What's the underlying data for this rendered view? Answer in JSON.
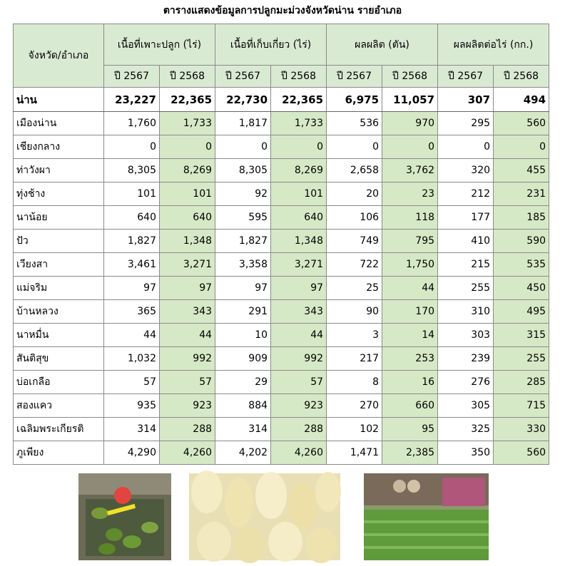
{
  "title": "ตารางแสดงข้อมูลการปลูกมะม่วงจังหวัดน่าน รายอำเภอ",
  "table": {
    "header": {
      "row_label": "จังหวัด/อำเภอ",
      "groups": [
        "เนื้อที่เพาะปลูก (ไร่)",
        "เนื้อที่เก็บเกี่ยว (ไร่)",
        "ผลผลิต (ตัน)",
        "ผลผลิตต่อไร่ (กก.)"
      ],
      "years": [
        "ปี 2567",
        "ปี 2568",
        "ปี 2567",
        "ปี 2568",
        "ปี 2567",
        "ปี 2568",
        "ปี 2567",
        "ปี 2568"
      ]
    },
    "rows": [
      [
        "น่าน",
        "23,227",
        "22,365",
        "22,730",
        "22,365",
        "6,975",
        "11,057",
        "307",
        "494"
      ],
      [
        "เมืองน่าน",
        "1,760",
        "1,733",
        "1,817",
        "1,733",
        "536",
        "970",
        "295",
        "560"
      ],
      [
        "เชียงกลาง",
        "0",
        "0",
        "0",
        "0",
        "0",
        "0",
        "0",
        "0"
      ],
      [
        "ท่าวังผา",
        "8,305",
        "8,269",
        "8,305",
        "8,269",
        "2,658",
        "3,762",
        "320",
        "455"
      ],
      [
        "ทุ่งช้าง",
        "101",
        "101",
        "92",
        "101",
        "20",
        "23",
        "212",
        "231"
      ],
      [
        "นาน้อย",
        "640",
        "640",
        "595",
        "640",
        "106",
        "118",
        "177",
        "185"
      ],
      [
        "ปัว",
        "1,827",
        "1,348",
        "1,827",
        "1,348",
        "749",
        "795",
        "410",
        "590"
      ],
      [
        "เวียงสา",
        "3,461",
        "3,271",
        "3,358",
        "3,271",
        "722",
        "1,750",
        "215",
        "535"
      ],
      [
        "แม่จริม",
        "97",
        "97",
        "97",
        "97",
        "25",
        "44",
        "255",
        "450"
      ],
      [
        "บ้านหลวง",
        "365",
        "343",
        "291",
        "343",
        "90",
        "170",
        "310",
        "495"
      ],
      [
        "นาหมื่น",
        "44",
        "44",
        "10",
        "44",
        "3",
        "14",
        "303",
        "315"
      ],
      [
        "สันติสุข",
        "1,032",
        "992",
        "909",
        "992",
        "217",
        "253",
        "239",
        "255"
      ],
      [
        "บ่อเกลือ",
        "57",
        "57",
        "29",
        "57",
        "8",
        "16",
        "276",
        "285"
      ],
      [
        "สองแคว",
        "935",
        "923",
        "884",
        "923",
        "270",
        "660",
        "305",
        "715"
      ],
      [
        "เฉลิมพระเกียรติ",
        "314",
        "288",
        "314",
        "288",
        "102",
        "95",
        "325",
        "330"
      ],
      [
        "ภูเพียง",
        "4,290",
        "4,260",
        "4,202",
        "4,260",
        "1,471",
        "2,385",
        "350",
        "560"
      ]
    ]
  }
}
